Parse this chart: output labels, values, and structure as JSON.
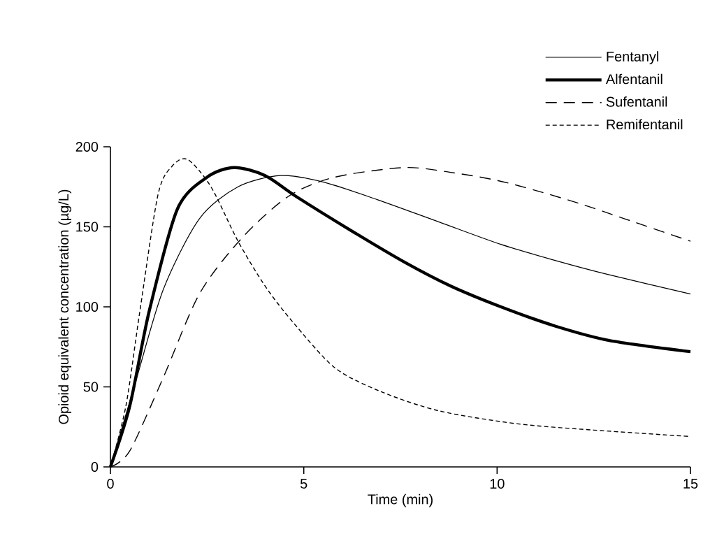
{
  "chart_data": {
    "type": "line",
    "xlabel": "Time (min)",
    "ylabel": "Opioid equivalent concentration (µg/L)",
    "xlim": [
      0,
      15
    ],
    "ylim": [
      0,
      200
    ],
    "xticks": [
      0,
      5,
      10,
      15
    ],
    "yticks": [
      0,
      50,
      100,
      150,
      200
    ],
    "grid": false,
    "legend": "top right",
    "marker": "none",
    "series": [
      {
        "name": "Fentanyl",
        "color": "#000000",
        "line_style": "solid",
        "x": [
          0,
          0.65,
          1.37,
          2.3,
          3.3,
          4.4,
          5.5,
          6.9,
          8.5,
          10.1,
          11.5,
          12.9,
          15
        ],
        "values": [
          0,
          53,
          111,
          155,
          175,
          182,
          178,
          167,
          153,
          139,
          129,
          120,
          108
        ]
      },
      {
        "name": "Alfentanil",
        "color": "#000000",
        "line_style": "solid",
        "x": [
          0,
          0.5,
          1.0,
          1.73,
          2.5,
          3.2,
          4.0,
          4.8,
          6.2,
          7.6,
          8.8,
          10.1,
          11.5,
          12.9,
          15
        ],
        "values": [
          0,
          38,
          97,
          161,
          181,
          187,
          182,
          169,
          148,
          128,
          113,
          100,
          88,
          79,
          72
        ]
      },
      {
        "name": "Sufentanil",
        "color": "#000000",
        "line_style": "dashed",
        "x": [
          0,
          0.5,
          1.37,
          2.3,
          3.4,
          4.6,
          5.8,
          7.6,
          8.8,
          10,
          11.1,
          12.2,
          13.3,
          15
        ],
        "values": [
          0,
          10,
          56,
          108,
          143,
          169,
          181,
          187,
          184,
          179,
          172,
          164,
          155,
          141
        ]
      },
      {
        "name": "Remifentanil",
        "color": "#000000",
        "line_style": "dotted",
        "x": [
          0,
          0.4,
          0.76,
          1.23,
          1.6,
          2.0,
          2.6,
          3.3,
          4.0,
          4.7,
          5.8,
          7.0,
          8.5,
          10.5,
          12.5,
          15
        ],
        "values": [
          0,
          38,
          97,
          170,
          188,
          192,
          175,
          141,
          113,
          91,
          62,
          47,
          35,
          27,
          23,
          19
        ]
      }
    ]
  }
}
